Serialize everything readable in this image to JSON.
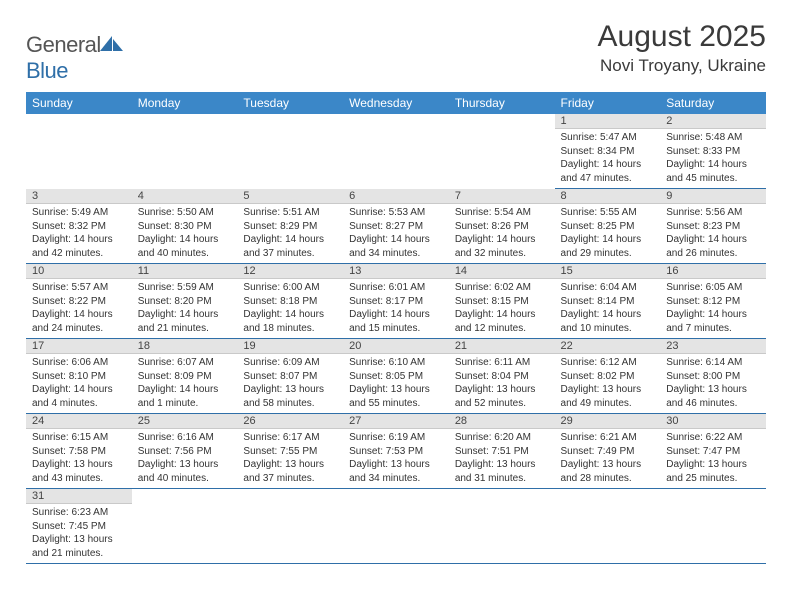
{
  "logo": {
    "word1": "General",
    "word2": "Blue"
  },
  "title": "August 2025",
  "location": "Novi Troyany, Ukraine",
  "colors": {
    "header_bg": "#3b87c8",
    "header_text": "#ffffff",
    "daynum_bg": "#e4e4e4",
    "rule": "#2f6fa8",
    "body_text": "#333333"
  },
  "weekdays": [
    "Sunday",
    "Monday",
    "Tuesday",
    "Wednesday",
    "Thursday",
    "Friday",
    "Saturday"
  ],
  "weeks": [
    [
      null,
      null,
      null,
      null,
      null,
      {
        "n": "1",
        "sr": "5:47 AM",
        "ss": "8:34 PM",
        "dl": "14 hours and 47 minutes."
      },
      {
        "n": "2",
        "sr": "5:48 AM",
        "ss": "8:33 PM",
        "dl": "14 hours and 45 minutes."
      }
    ],
    [
      {
        "n": "3",
        "sr": "5:49 AM",
        "ss": "8:32 PM",
        "dl": "14 hours and 42 minutes."
      },
      {
        "n": "4",
        "sr": "5:50 AM",
        "ss": "8:30 PM",
        "dl": "14 hours and 40 minutes."
      },
      {
        "n": "5",
        "sr": "5:51 AM",
        "ss": "8:29 PM",
        "dl": "14 hours and 37 minutes."
      },
      {
        "n": "6",
        "sr": "5:53 AM",
        "ss": "8:27 PM",
        "dl": "14 hours and 34 minutes."
      },
      {
        "n": "7",
        "sr": "5:54 AM",
        "ss": "8:26 PM",
        "dl": "14 hours and 32 minutes."
      },
      {
        "n": "8",
        "sr": "5:55 AM",
        "ss": "8:25 PM",
        "dl": "14 hours and 29 minutes."
      },
      {
        "n": "9",
        "sr": "5:56 AM",
        "ss": "8:23 PM",
        "dl": "14 hours and 26 minutes."
      }
    ],
    [
      {
        "n": "10",
        "sr": "5:57 AM",
        "ss": "8:22 PM",
        "dl": "14 hours and 24 minutes."
      },
      {
        "n": "11",
        "sr": "5:59 AM",
        "ss": "8:20 PM",
        "dl": "14 hours and 21 minutes."
      },
      {
        "n": "12",
        "sr": "6:00 AM",
        "ss": "8:18 PM",
        "dl": "14 hours and 18 minutes."
      },
      {
        "n": "13",
        "sr": "6:01 AM",
        "ss": "8:17 PM",
        "dl": "14 hours and 15 minutes."
      },
      {
        "n": "14",
        "sr": "6:02 AM",
        "ss": "8:15 PM",
        "dl": "14 hours and 12 minutes."
      },
      {
        "n": "15",
        "sr": "6:04 AM",
        "ss": "8:14 PM",
        "dl": "14 hours and 10 minutes."
      },
      {
        "n": "16",
        "sr": "6:05 AM",
        "ss": "8:12 PM",
        "dl": "14 hours and 7 minutes."
      }
    ],
    [
      {
        "n": "17",
        "sr": "6:06 AM",
        "ss": "8:10 PM",
        "dl": "14 hours and 4 minutes."
      },
      {
        "n": "18",
        "sr": "6:07 AM",
        "ss": "8:09 PM",
        "dl": "14 hours and 1 minute."
      },
      {
        "n": "19",
        "sr": "6:09 AM",
        "ss": "8:07 PM",
        "dl": "13 hours and 58 minutes."
      },
      {
        "n": "20",
        "sr": "6:10 AM",
        "ss": "8:05 PM",
        "dl": "13 hours and 55 minutes."
      },
      {
        "n": "21",
        "sr": "6:11 AM",
        "ss": "8:04 PM",
        "dl": "13 hours and 52 minutes."
      },
      {
        "n": "22",
        "sr": "6:12 AM",
        "ss": "8:02 PM",
        "dl": "13 hours and 49 minutes."
      },
      {
        "n": "23",
        "sr": "6:14 AM",
        "ss": "8:00 PM",
        "dl": "13 hours and 46 minutes."
      }
    ],
    [
      {
        "n": "24",
        "sr": "6:15 AM",
        "ss": "7:58 PM",
        "dl": "13 hours and 43 minutes."
      },
      {
        "n": "25",
        "sr": "6:16 AM",
        "ss": "7:56 PM",
        "dl": "13 hours and 40 minutes."
      },
      {
        "n": "26",
        "sr": "6:17 AM",
        "ss": "7:55 PM",
        "dl": "13 hours and 37 minutes."
      },
      {
        "n": "27",
        "sr": "6:19 AM",
        "ss": "7:53 PM",
        "dl": "13 hours and 34 minutes."
      },
      {
        "n": "28",
        "sr": "6:20 AM",
        "ss": "7:51 PM",
        "dl": "13 hours and 31 minutes."
      },
      {
        "n": "29",
        "sr": "6:21 AM",
        "ss": "7:49 PM",
        "dl": "13 hours and 28 minutes."
      },
      {
        "n": "30",
        "sr": "6:22 AM",
        "ss": "7:47 PM",
        "dl": "13 hours and 25 minutes."
      }
    ],
    [
      {
        "n": "31",
        "sr": "6:23 AM",
        "ss": "7:45 PM",
        "dl": "13 hours and 21 minutes."
      },
      null,
      null,
      null,
      null,
      null,
      null
    ]
  ],
  "labels": {
    "sunrise": "Sunrise:",
    "sunset": "Sunset:",
    "daylight": "Daylight:"
  }
}
